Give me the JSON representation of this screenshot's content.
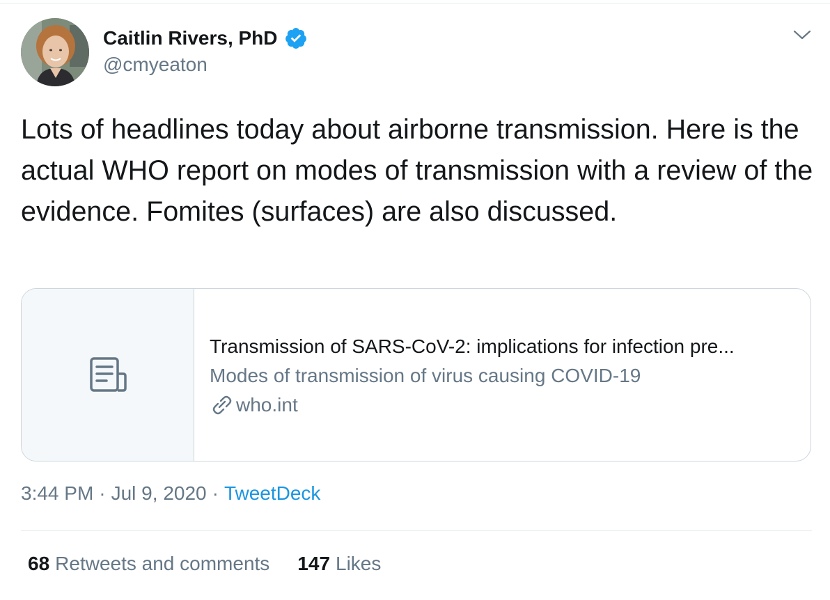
{
  "author": {
    "name": "Caitlin Rivers, PhD",
    "handle": "@cmyeaton",
    "verified": true
  },
  "tweet": {
    "text": "Lots of headlines today about airborne transmission. Here is the actual WHO report on modes of transmission with a review of the evidence. Fomites (surfaces) are also discussed."
  },
  "card": {
    "title": "Transmission of SARS-CoV-2: implications for infection pre...",
    "description": "Modes of transmission of virus causing COVID-19",
    "domain": "who.int",
    "thumb_icon": "document-icon"
  },
  "meta": {
    "time": "3:44 PM",
    "date": "Jul 9, 2020",
    "separator": "·",
    "source": "TweetDeck"
  },
  "stats": {
    "retweets_count": "68",
    "retweets_label": "Retweets and comments",
    "likes_count": "147",
    "likes_label": "Likes"
  },
  "colors": {
    "text": "#14171a",
    "secondary": "#657786",
    "accent": "#1b95e0",
    "border": "#ccd6dd"
  }
}
